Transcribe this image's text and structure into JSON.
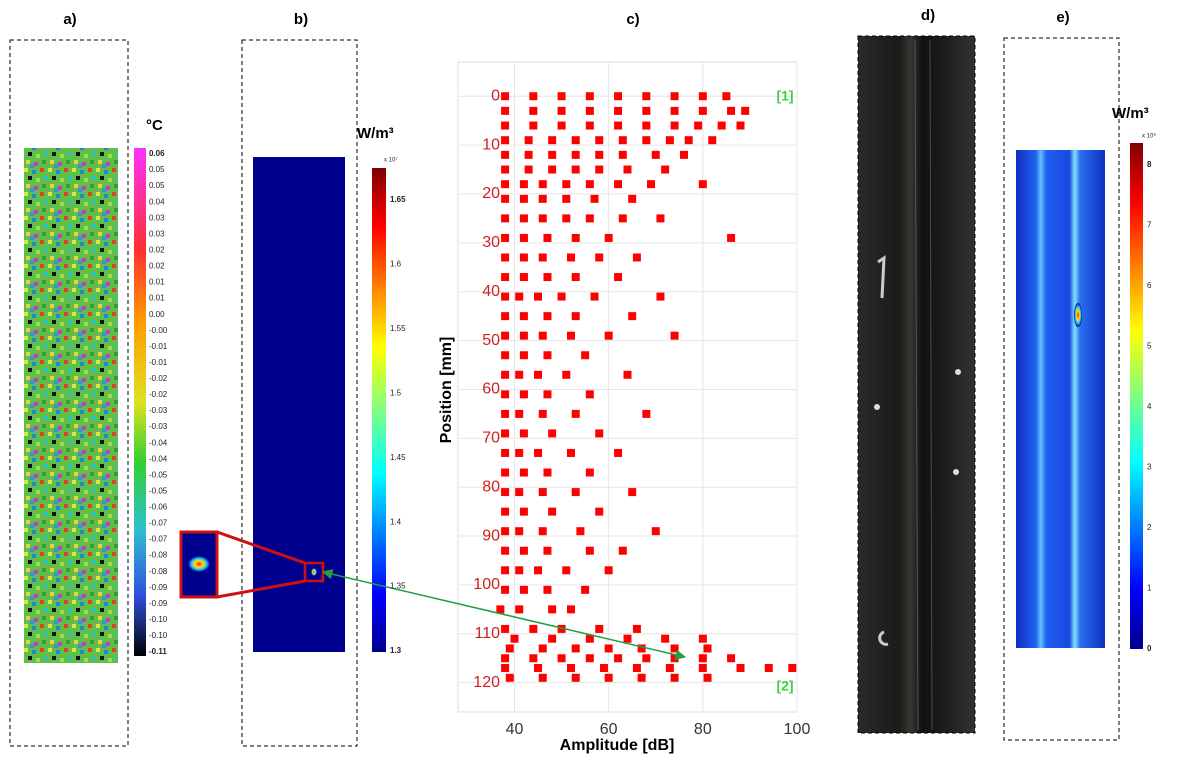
{
  "panel_labels": [
    "a)",
    "b)",
    "c)",
    "d)",
    "e)"
  ],
  "colorbar_a": {
    "title": "°C",
    "labels": [
      "0.06",
      "0.05",
      "0.05",
      "0.04",
      "0.03",
      "0.03",
      "0.02",
      "0.02",
      "0.01",
      "0.01",
      "0.00",
      "-0.00",
      "-0.01",
      "-0.01",
      "-0.02",
      "-0.02",
      "-0.03",
      "-0.03",
      "-0.04",
      "-0.04",
      "-0.05",
      "-0.05",
      "-0.06",
      "-0.07",
      "-0.07",
      "-0.08",
      "-0.08",
      "-0.09",
      "-0.09",
      "-0.10",
      "-0.10",
      "-0.11"
    ]
  },
  "colorbar_b": {
    "title": "W/m³",
    "exponent": "x 10⁷",
    "labels": [
      "1.65",
      "1.6",
      "1.55",
      "1.5",
      "1.45",
      "1.4",
      "1.35",
      "1.3"
    ]
  },
  "colorbar_e": {
    "title": "W/m³",
    "exponent": "x 10⁹",
    "labels": [
      "8",
      "7",
      "6",
      "5",
      "4",
      "3",
      "2",
      "1",
      "0"
    ]
  },
  "chart_data": {
    "type": "scatter",
    "xlabel": "Amplitude [dB]",
    "ylabel": "Position [mm]",
    "color": "#ff0000",
    "annotations": [
      "[1]",
      "[2]"
    ],
    "xlim": [
      28,
      100
    ],
    "ylim": [
      -7,
      126
    ],
    "y_inverted": true,
    "grid": true,
    "xticks": [
      40,
      60,
      80,
      100
    ],
    "yticks": [
      0,
      10,
      20,
      30,
      40,
      50,
      60,
      70,
      80,
      90,
      100,
      110,
      120
    ],
    "x": [
      38,
      44,
      50,
      56,
      62,
      68,
      74,
      80,
      85,
      38,
      44,
      50,
      56,
      62,
      68,
      74,
      80,
      86,
      89,
      38,
      44,
      50,
      56,
      62,
      68,
      74,
      79,
      84,
      88,
      38,
      43,
      48,
      53,
      58,
      63,
      68,
      73,
      77,
      82,
      38,
      43,
      48,
      53,
      58,
      63,
      70,
      76,
      38,
      43,
      48,
      53,
      58,
      64,
      72,
      38,
      42,
      46,
      51,
      56,
      62,
      69,
      80,
      38,
      42,
      46,
      51,
      57,
      65,
      38,
      42,
      46,
      51,
      56,
      63,
      71,
      38,
      42,
      47,
      53,
      60,
      86,
      38,
      42,
      46,
      52,
      58,
      66,
      38,
      42,
      47,
      53,
      62,
      38,
      41,
      45,
      50,
      57,
      71,
      38,
      42,
      47,
      53,
      65,
      38,
      42,
      46,
      52,
      60,
      74,
      38,
      42,
      47,
      55,
      38,
      41,
      45,
      51,
      64,
      38,
      42,
      47,
      56,
      38,
      41,
      46,
      53,
      68,
      38,
      42,
      48,
      58,
      38,
      41,
      45,
      52,
      62,
      38,
      42,
      47,
      56,
      38,
      41,
      46,
      53,
      65,
      38,
      42,
      48,
      58,
      38,
      41,
      46,
      54,
      70,
      38,
      42,
      47,
      56,
      63,
      38,
      41,
      45,
      51,
      60,
      38,
      42,
      47,
      55,
      37,
      41,
      48,
      52,
      38,
      44,
      50,
      58,
      66,
      40,
      48,
      56,
      64,
      72,
      80,
      39,
      46,
      53,
      60,
      67,
      74,
      81,
      38,
      44,
      50,
      56,
      62,
      68,
      74,
      80,
      86,
      38,
      45,
      52,
      59,
      66,
      73,
      80,
      88,
      94,
      99,
      39,
      46,
      53,
      60,
      67,
      74,
      81
    ],
    "values": [
      0,
      0,
      0,
      0,
      0,
      0,
      0,
      0,
      0,
      3,
      3,
      3,
      3,
      3,
      3,
      3,
      3,
      3,
      3,
      6,
      6,
      6,
      6,
      6,
      6,
      6,
      6,
      6,
      6,
      9,
      9,
      9,
      9,
      9,
      9,
      9,
      9,
      9,
      9,
      12,
      12,
      12,
      12,
      12,
      12,
      12,
      12,
      15,
      15,
      15,
      15,
      15,
      15,
      15,
      18,
      18,
      18,
      18,
      18,
      18,
      18,
      18,
      21,
      21,
      21,
      21,
      21,
      21,
      25,
      25,
      25,
      25,
      25,
      25,
      25,
      29,
      29,
      29,
      29,
      29,
      29,
      33,
      33,
      33,
      33,
      33,
      33,
      37,
      37,
      37,
      37,
      37,
      41,
      41,
      41,
      41,
      41,
      41,
      45,
      45,
      45,
      45,
      45,
      49,
      49,
      49,
      49,
      49,
      49,
      53,
      53,
      53,
      53,
      57,
      57,
      57,
      57,
      57,
      61,
      61,
      61,
      61,
      65,
      65,
      65,
      65,
      65,
      69,
      69,
      69,
      69,
      73,
      73,
      73,
      73,
      73,
      77,
      77,
      77,
      77,
      81,
      81,
      81,
      81,
      81,
      85,
      85,
      85,
      85,
      89,
      89,
      89,
      89,
      89,
      93,
      93,
      93,
      93,
      93,
      97,
      97,
      97,
      97,
      97,
      101,
      101,
      101,
      101,
      105,
      105,
      105,
      105,
      109,
      109,
      109,
      109,
      109,
      111,
      111,
      111,
      111,
      111,
      111,
      113,
      113,
      113,
      113,
      113,
      113,
      113,
      115,
      115,
      115,
      115,
      115,
      115,
      115,
      115,
      115,
      117,
      117,
      117,
      117,
      117,
      117,
      117,
      117,
      117,
      117,
      119,
      119,
      119,
      119,
      119,
      119,
      119
    ]
  }
}
